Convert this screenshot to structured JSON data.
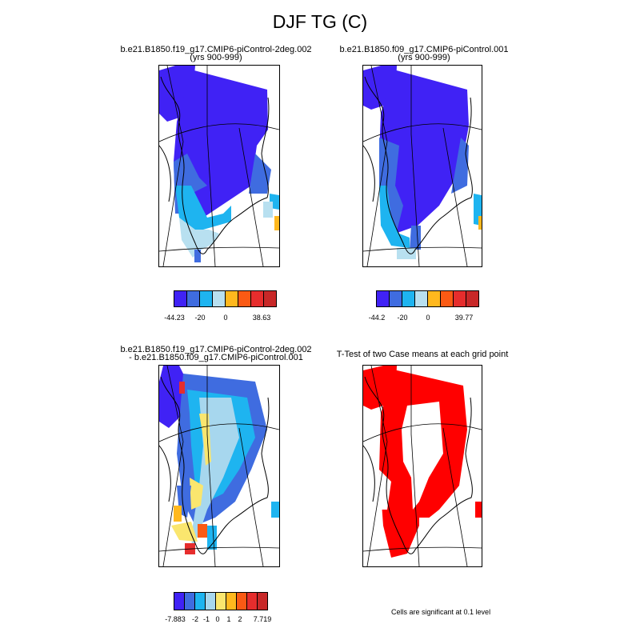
{
  "figure_title": "DJF TG (C)",
  "panels": [
    {
      "title_line1": "b.e21.B1850.f19_g17.CMIP6-piControl-2deg.002",
      "title_line2": "(yrs 900-999)",
      "colors": [
        "#4022f5",
        "#3f6ce0",
        "#1eb4f0",
        "#b8e0f0",
        "#ffb81e",
        "#fa5a14",
        "#e62d2d",
        "#c82828"
      ],
      "colorbar_labels": [
        "-44.23",
        "-20",
        "0",
        "38.63"
      ]
    },
    {
      "title_line1": "b.e21.B1850.f09_g17.CMIP6-piControl.001",
      "title_line2": "(yrs 900-999)",
      "colors": [
        "#4022f5",
        "#3f6ce0",
        "#1eb4f0",
        "#b8e0f0",
        "#ffb81e",
        "#fa5a14",
        "#e62d2d",
        "#c82828"
      ],
      "colorbar_labels": [
        "-44.2",
        "-20",
        "0",
        "39.77"
      ]
    },
    {
      "title_line1": "b.e21.B1850.f19_g17.CMIP6-piControl-2deg.002",
      "title_line2": "- b.e21.B1850.f09_g17.CMIP6-piControl.001",
      "colors": [
        "#4022f5",
        "#3f6ce0",
        "#1eb4f0",
        "#a7d7ee",
        "#fae66e",
        "#ffb81e",
        "#fa5a14",
        "#e62d2d",
        "#c82828"
      ],
      "colorbar_labels": [
        "-7.883",
        "-2",
        "-1",
        "0",
        "1",
        "2",
        "7.719"
      ]
    },
    {
      "title_line1": "T-Test of two Case means at each grid point",
      "title_line2": "",
      "significance_color": "#ff0000",
      "note": "Cells are significant at 0.1 level"
    }
  ]
}
